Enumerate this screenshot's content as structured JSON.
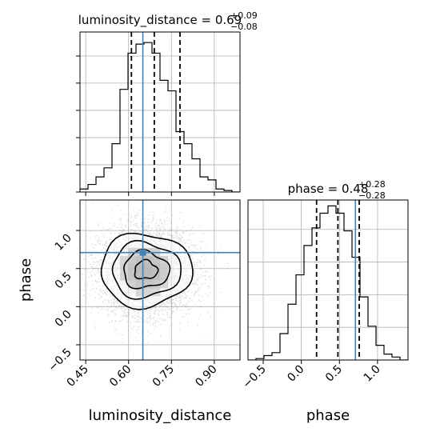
{
  "chart_data": {
    "type": "corner",
    "parameters": [
      "luminosity_distance",
      "phase"
    ],
    "truths": {
      "luminosity_distance": 0.65,
      "phase": 0.71
    },
    "titles": {
      "luminosity_distance": {
        "prefix": "luminosity_distance = ",
        "value": "0.69",
        "plus": "+0.09",
        "minus": "−0.08"
      },
      "phase": {
        "prefix": "phase = ",
        "value": "0.48",
        "plus": "+0.28",
        "minus": "−0.28"
      }
    },
    "quantile_lines": {
      "luminosity_distance": [
        0.61,
        0.69,
        0.78
      ],
      "phase": [
        0.2,
        0.48,
        0.76
      ]
    },
    "axes": {
      "luminosity_distance": {
        "label": "luminosity_distance",
        "range": [
          0.43,
          0.99
        ],
        "ticks": [
          0.45,
          0.6,
          0.75,
          0.9
        ],
        "tick_labels": [
          "0.45",
          "0.60",
          "0.75",
          "0.90"
        ]
      },
      "phase": {
        "label": "phase",
        "range": [
          -0.7,
          1.4
        ],
        "ticks": [
          -0.5,
          0.0,
          0.5,
          1.0
        ],
        "tick_labels": [
          "−0.5",
          "0.0",
          "0.5",
          "1.0"
        ]
      }
    },
    "hist_luminosity_distance": {
      "bin_edges": [
        0.43,
        0.458,
        0.486,
        0.514,
        0.542,
        0.57,
        0.598,
        0.626,
        0.654,
        0.682,
        0.71,
        0.738,
        0.766,
        0.794,
        0.822,
        0.85,
        0.878,
        0.906,
        0.934,
        0.962,
        0.99
      ],
      "counts": [
        2,
        5,
        10,
        16,
        32,
        68,
        92,
        98,
        99,
        92,
        74,
        67,
        40,
        32,
        22,
        10,
        8,
        2,
        1,
        0
      ],
      "ymax": 106
    },
    "hist_phase": {
      "bin_edges": [
        -0.7,
        -0.595,
        -0.49,
        -0.385,
        -0.28,
        -0.175,
        -0.07,
        0.035,
        0.14,
        0.245,
        0.35,
        0.455,
        0.56,
        0.665,
        0.77,
        0.875,
        0.98,
        1.085,
        1.19,
        1.295,
        1.4
      ],
      "counts": [
        0,
        1,
        3,
        5,
        18,
        38,
        58,
        78,
        90,
        100,
        105,
        100,
        88,
        70,
        43,
        23,
        10,
        4,
        2,
        0
      ],
      "ymax": 109
    },
    "joint_2d": {
      "center": [
        0.66,
        0.48
      ],
      "sigma": [
        0.08,
        0.28
      ],
      "contour_levels_sigma": [
        0.5,
        1.0,
        1.5,
        2.0
      ],
      "scatter_points": 6000,
      "grid_bins": 20
    },
    "grid": true
  }
}
